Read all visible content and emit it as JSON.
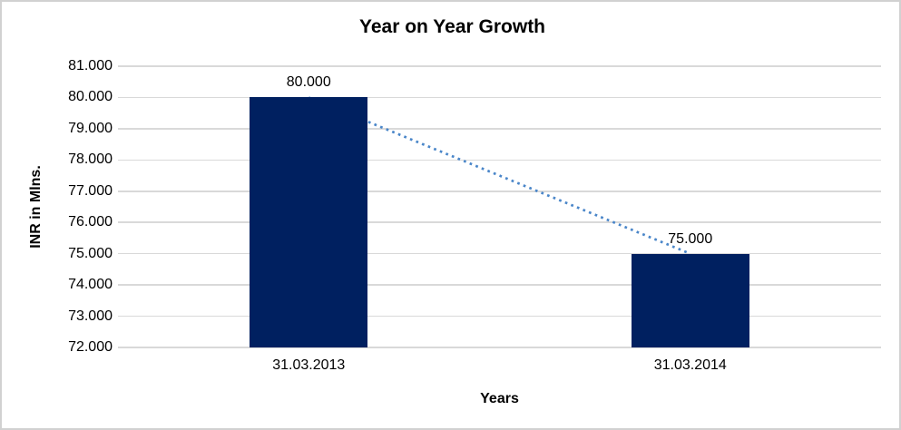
{
  "chart_data": {
    "type": "bar",
    "title": "Year on Year Growth",
    "categories": [
      "31.03.2013",
      "31.03.2014"
    ],
    "values": [
      80.0,
      75.0
    ],
    "value_labels": [
      "80.000",
      "75.000"
    ],
    "xlabel": "Years",
    "ylabel": "INR in Mlns.",
    "ylim": [
      72,
      81
    ],
    "ytick_step": 1,
    "yticks": [
      {
        "value": 81,
        "label": "81.000"
      },
      {
        "value": 80,
        "label": "80.000"
      },
      {
        "value": 79,
        "label": "79.000"
      },
      {
        "value": 78,
        "label": "78.000"
      },
      {
        "value": 77,
        "label": "77.000"
      },
      {
        "value": 76,
        "label": "76.000"
      },
      {
        "value": 75,
        "label": "75.000"
      },
      {
        "value": 74,
        "label": "74.000"
      },
      {
        "value": 73,
        "label": "73.000"
      },
      {
        "value": 72,
        "label": "72.000"
      }
    ],
    "grid": true,
    "legend": "none",
    "trendline": true,
    "colors": {
      "bar": "#002060",
      "trendline": "#4a86c9",
      "gridline": "#d9d9d9",
      "text": "#000000"
    }
  }
}
